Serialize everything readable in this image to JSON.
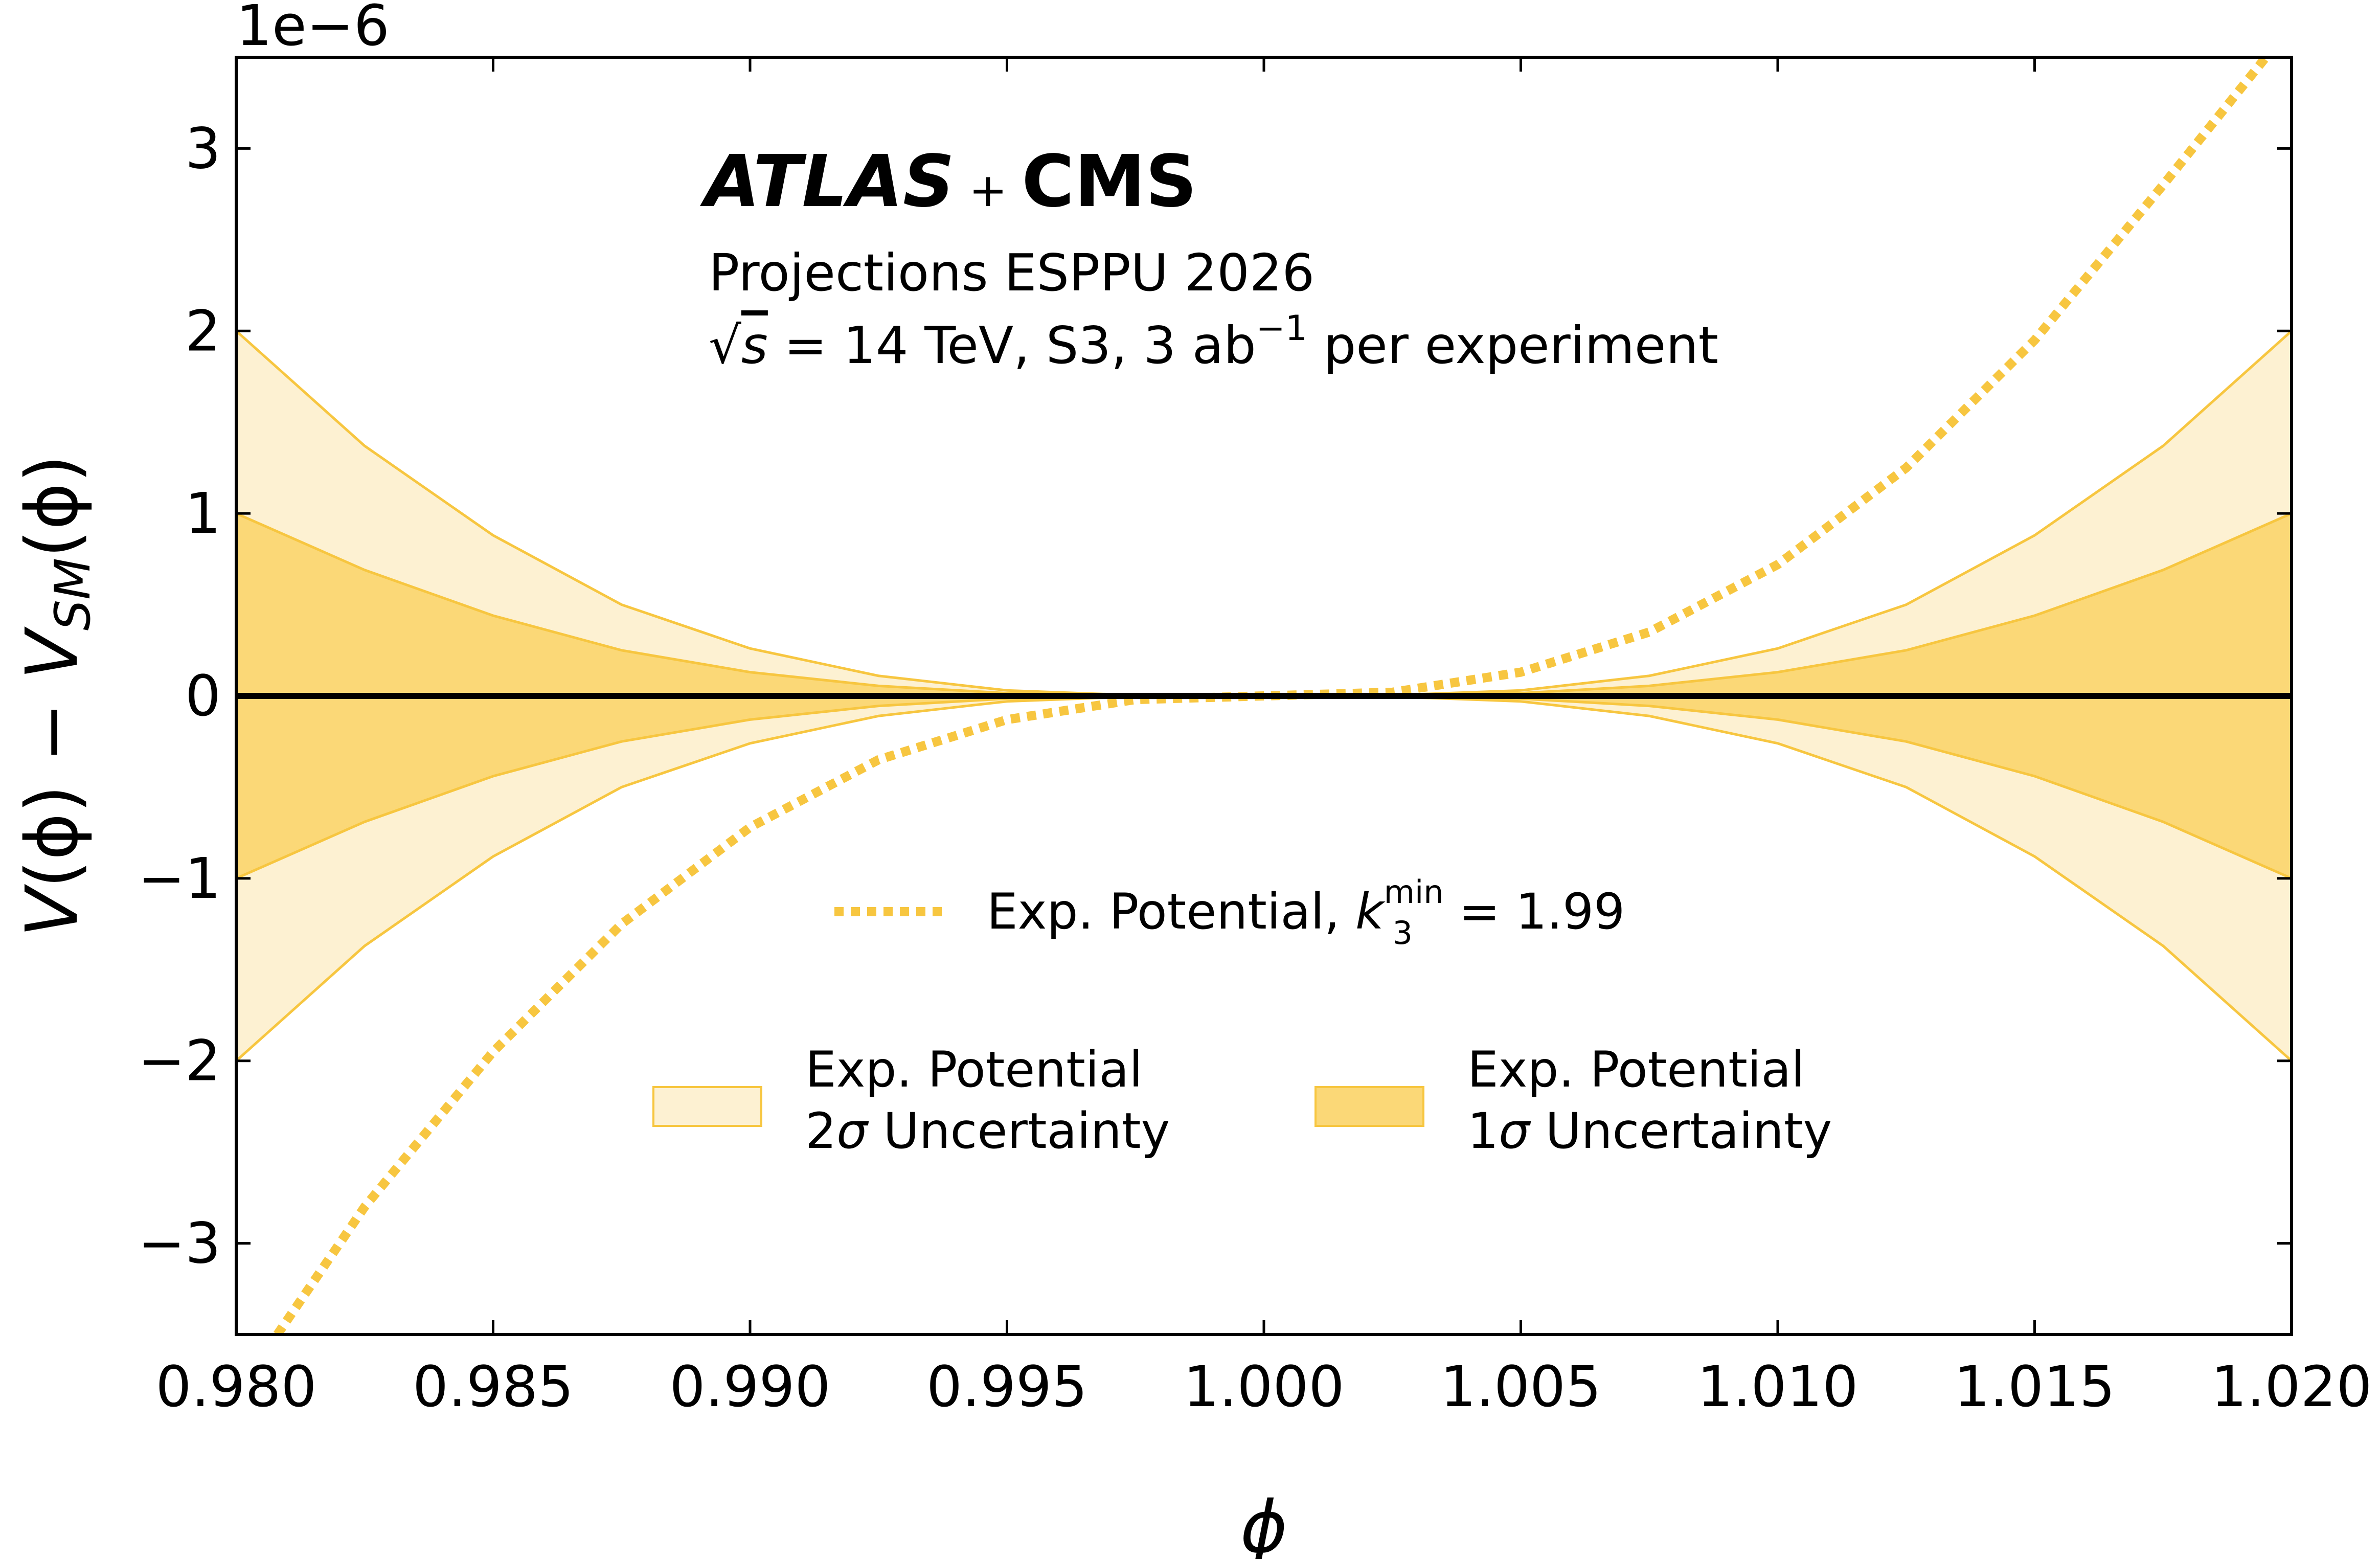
{
  "chart_data": {
    "type": "area",
    "x_label": "ϕ",
    "y_label_parts": {
      "V1": "V",
      "phi1": "(ϕ)",
      "minus": " − ",
      "V2": "V",
      "sub": "SM",
      "phi2": "(ϕ)"
    },
    "y_offset_label": "1e−6",
    "xlim": [
      0.98,
      1.02
    ],
    "ylim": [
      -3.5,
      3.5
    ],
    "y_scale_factor": 1e-06,
    "x_ticks": [
      0.98,
      0.985,
      0.99,
      0.995,
      1.0,
      1.005,
      1.01,
      1.015,
      1.02
    ],
    "x_tick_labels": [
      "0.980",
      "0.985",
      "0.990",
      "0.995",
      "1.000",
      "1.005",
      "1.010",
      "1.015",
      "1.020"
    ],
    "y_ticks": [
      -3,
      -2,
      -1,
      0,
      1,
      2,
      3
    ],
    "y_tick_labels": [
      "−3",
      "−2",
      "−1",
      "0",
      "1",
      "2",
      "3"
    ],
    "grid": false,
    "annotation": {
      "brand_left": "ATLAS",
      "brand_plus": "+",
      "brand_right": "CMS",
      "line1": "Projections ESPPU 2026",
      "line2_sqrt": "√",
      "line2_s": "s",
      "line2_rest": " = 14 TeV, S3, 3 ab",
      "line2_sup": "−1",
      "line2_tail": " per experiment"
    },
    "series": [
      {
        "name": "Exp. Potential, k₃ᵐⁱⁿ = 1.99",
        "legend_prefix": "Exp. Potential, ",
        "legend_k": "k",
        "legend_k_sub": "3",
        "legend_k_sup": "min",
        "legend_value": " = 1.99",
        "style": "dotted",
        "color": "#f7c640",
        "x": [
          0.9808,
          0.9825,
          0.985,
          0.9875,
          0.99,
          0.9925,
          0.995,
          0.9975,
          1.0,
          1.0025,
          1.005,
          1.0075,
          1.01,
          1.0125,
          1.015,
          1.0175,
          1.0195
        ],
        "y": [
          -3.5,
          -2.8,
          -1.95,
          -1.25,
          -0.72,
          -0.35,
          -0.13,
          -0.02,
          0.0,
          0.02,
          0.13,
          0.35,
          0.72,
          1.25,
          1.95,
          2.8,
          3.5
        ]
      },
      {
        "name": "SM reference",
        "style": "solid",
        "color": "#000000",
        "x": [
          0.98,
          1.02
        ],
        "y": [
          0,
          0
        ]
      }
    ],
    "bands": [
      {
        "legend_line1": "Exp. Potential",
        "legend_sigma_num": "2",
        "legend_sigma": "σ",
        "legend_line2_rest": " Uncertainty",
        "fill": "#fdf1d2",
        "edge": "#f7c640",
        "x": [
          0.98,
          0.9825,
          0.985,
          0.9875,
          0.99,
          0.9925,
          0.995,
          0.9975,
          1.0,
          1.0025,
          1.005,
          1.0075,
          1.01,
          1.0125,
          1.015,
          1.0175,
          1.02
        ],
        "y_upper": [
          2.0,
          1.37,
          0.88,
          0.5,
          0.26,
          0.11,
          0.03,
          0.004,
          0.0,
          0.004,
          0.03,
          0.11,
          0.26,
          0.5,
          0.88,
          1.37,
          2.0
        ],
        "y_lower": [
          -2.0,
          -1.37,
          -0.88,
          -0.5,
          -0.26,
          -0.11,
          -0.03,
          -0.004,
          0.0,
          -0.004,
          -0.03,
          -0.11,
          -0.26,
          -0.5,
          -0.88,
          -1.37,
          -2.0
        ]
      },
      {
        "legend_line1": "Exp. Potential",
        "legend_sigma_num": "1",
        "legend_sigma": "σ",
        "legend_line2_rest": " Uncertainty",
        "fill": "#fbd877",
        "edge": "#f7c640",
        "x": [
          0.98,
          0.9825,
          0.985,
          0.9875,
          0.99,
          0.9925,
          0.995,
          0.9975,
          1.0,
          1.0025,
          1.005,
          1.0075,
          1.01,
          1.0125,
          1.015,
          1.0175,
          1.02
        ],
        "y_upper": [
          1.0,
          0.69,
          0.44,
          0.25,
          0.13,
          0.055,
          0.015,
          0.002,
          0.0,
          0.002,
          0.015,
          0.055,
          0.13,
          0.25,
          0.44,
          0.69,
          1.0
        ],
        "y_lower": [
          -1.0,
          -0.69,
          -0.44,
          -0.25,
          -0.13,
          -0.055,
          -0.015,
          -0.002,
          0.0,
          -0.002,
          -0.015,
          -0.055,
          -0.13,
          -0.25,
          -0.44,
          -0.69,
          -1.0
        ]
      }
    ]
  }
}
